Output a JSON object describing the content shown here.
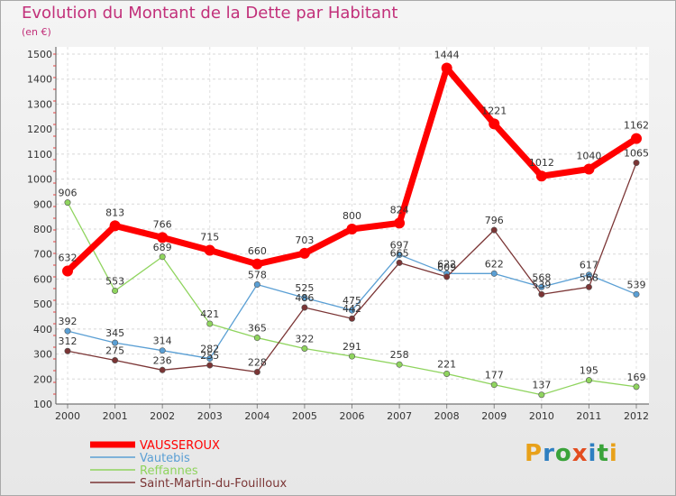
{
  "title": "Evolution du Montant de la Dette par Habitant",
  "unit": "(en €)",
  "logo": {
    "text": "Proxiti",
    "letter_colors": [
      "#e8a11a",
      "#2e7fc1",
      "#3aa33a",
      "#e34c1f",
      "#2e7fc1",
      "#3aa33a",
      "#e8a11a"
    ]
  },
  "chart_data": {
    "type": "line",
    "x": [
      2000,
      2001,
      2002,
      2003,
      2004,
      2005,
      2006,
      2007,
      2008,
      2009,
      2010,
      2011,
      2012
    ],
    "ylim": [
      100,
      1500
    ],
    "yticks": [
      100,
      200,
      300,
      400,
      500,
      600,
      700,
      800,
      900,
      1000,
      1100,
      1200,
      1300,
      1400,
      1500
    ],
    "grid": true,
    "legend_position": "bottom-left",
    "series": [
      {
        "name": "Vautebis",
        "color": "#5a9fd4",
        "values": [
          392,
          345,
          314,
          282,
          578,
          525,
          475,
          697,
          622,
          622,
          568,
          617,
          539
        ],
        "labels": [
          "392",
          "345",
          "314",
          "282",
          "578",
          "525",
          "475",
          "697",
          "622",
          "622",
          "568",
          "617",
          "539"
        ]
      },
      {
        "name": "Reffannes",
        "color": "#8fd45e",
        "values": [
          906,
          553,
          689,
          421,
          365,
          322,
          291,
          258,
          221,
          177,
          137,
          195,
          169
        ],
        "labels": [
          "906",
          "553",
          "689",
          "421",
          "365",
          "322",
          "291",
          "258",
          "221",
          "177",
          "137",
          "195",
          "169"
        ]
      },
      {
        "name": "Saint-Martin-du-Fouilloux",
        "color": "#7b3535",
        "values": [
          312,
          275,
          236,
          255,
          228,
          486,
          442,
          665,
          609,
          796,
          539,
          568,
          1065
        ],
        "labels": [
          "312",
          "275",
          "236",
          "255",
          "228",
          "486",
          "442",
          "665",
          "609",
          "796",
          "539",
          "568",
          "1065"
        ]
      },
      {
        "name": "VAUSSEROUX",
        "color": "#ff0000",
        "values": [
          632,
          813,
          766,
          715,
          660,
          703,
          800,
          824,
          1444,
          1221,
          1012,
          1040,
          1162
        ],
        "labels": [
          "632",
          "813",
          "766",
          "715",
          "660",
          "703",
          "800",
          "824",
          "1444",
          "1221",
          "1012",
          "1040",
          "1162"
        ]
      }
    ],
    "legend_order": [
      "VAUSSEROUX",
      "Vautebis",
      "Reffannes",
      "Saint-Martin-du-Fouilloux"
    ]
  }
}
